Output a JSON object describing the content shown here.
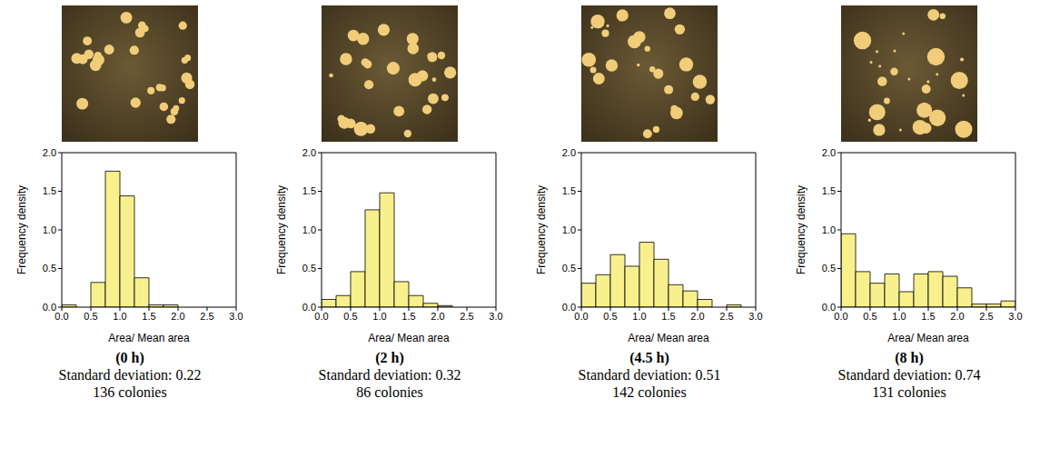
{
  "chart_data": [
    {
      "type": "histogram",
      "title": "(0 h)",
      "x_label": "Area/ Mean area",
      "y_label": "Frequency density",
      "bins": [
        0,
        0.25,
        0.5,
        0.75,
        1,
        1.25,
        1.5,
        1.75,
        2,
        2.25,
        2.5,
        2.75,
        3
      ],
      "values": [
        0.03,
        0,
        0.32,
        1.76,
        1.44,
        0.38,
        0.03,
        0.03,
        0,
        0,
        0,
        0
      ],
      "color": "#f7f08c",
      "xlim": [
        0,
        3
      ],
      "ylim": [
        0,
        2
      ],
      "xticks": [
        {
          "value": 0,
          "label": "0.0"
        },
        0.5,
        {
          "value": 1,
          "label": "1.0"
        },
        1.5,
        {
          "value": 2,
          "label": "2.0"
        },
        2.5,
        {
          "value": 3,
          "label": "3.0"
        }
      ],
      "yticks": [
        {
          "value": 0,
          "label": "0.0"
        },
        0.5,
        {
          "value": 1,
          "label": "1.0"
        },
        1.5,
        {
          "value": 2,
          "label": "2.0"
        }
      ],
      "grid": false,
      "annotations": [
        "Standard deviation: 0.22",
        "136 colonies"
      ]
    },
    {
      "type": "histogram",
      "title": "(2 h)",
      "x_label": "Area/ Mean area",
      "y_label": "Frequency density",
      "bins": [
        0,
        0.25,
        0.5,
        0.75,
        1,
        1.25,
        1.5,
        1.75,
        2,
        2.25,
        2.5,
        2.75,
        3
      ],
      "values": [
        0.1,
        0.15,
        0.46,
        1.26,
        1.48,
        0.33,
        0.15,
        0.05,
        0.02,
        0,
        0,
        0
      ],
      "color": "#f7f08c",
      "xlim": [
        0,
        3
      ],
      "ylim": [
        0,
        2
      ],
      "xticks": [
        {
          "value": 0,
          "label": "0.0"
        },
        0.5,
        {
          "value": 1,
          "label": "1.0"
        },
        1.5,
        {
          "value": 2,
          "label": "2.0"
        },
        2.5,
        {
          "value": 3,
          "label": "3.0"
        }
      ],
      "yticks": [
        {
          "value": 0,
          "label": "0.0"
        },
        0.5,
        {
          "value": 1,
          "label": "1.0"
        },
        1.5,
        {
          "value": 2,
          "label": "2.0"
        }
      ],
      "grid": false,
      "annotations": [
        "Standard deviation: 0.32",
        "86 colonies"
      ]
    },
    {
      "type": "histogram",
      "title": "(4.5 h)",
      "x_label": "Area/ Mean area",
      "y_label": "Frequency density",
      "bins": [
        0,
        0.25,
        0.5,
        0.75,
        1,
        1.25,
        1.5,
        1.75,
        2,
        2.25,
        2.5,
        2.75,
        3
      ],
      "values": [
        0.31,
        0.42,
        0.68,
        0.53,
        0.84,
        0.62,
        0.29,
        0.21,
        0.1,
        0,
        0.03,
        0
      ],
      "color": "#f7f08c",
      "xlim": [
        0,
        3
      ],
      "ylim": [
        0,
        2
      ],
      "xticks": [
        {
          "value": 0,
          "label": "0.0"
        },
        0.5,
        {
          "value": 1,
          "label": "1.0"
        },
        1.5,
        {
          "value": 2,
          "label": "2.0"
        },
        2.5,
        {
          "value": 3,
          "label": "3.0"
        }
      ],
      "yticks": [
        {
          "value": 0,
          "label": "0.0"
        },
        0.5,
        {
          "value": 1,
          "label": "1.0"
        },
        1.5,
        {
          "value": 2,
          "label": "2.0"
        }
      ],
      "grid": false,
      "annotations": [
        "Standard deviation: 0.51",
        "142 colonies"
      ]
    },
    {
      "type": "histogram",
      "title": "(8 h)",
      "x_label": "Area/ Mean area",
      "y_label": "Frequency density",
      "bins": [
        0,
        0.25,
        0.5,
        0.75,
        1,
        1.25,
        1.5,
        1.75,
        2,
        2.25,
        2.5,
        2.75,
        3
      ],
      "values": [
        0.95,
        0.46,
        0.31,
        0.43,
        0.2,
        0.43,
        0.46,
        0.4,
        0.25,
        0.04,
        0.04,
        0.08
      ],
      "color": "#f7f08c",
      "xlim": [
        0,
        3
      ],
      "ylim": [
        0,
        2
      ],
      "xticks": [
        {
          "value": 0,
          "label": "0.0"
        },
        0.5,
        {
          "value": 1,
          "label": "1.0"
        },
        1.5,
        {
          "value": 2,
          "label": "2.0"
        },
        2.5,
        {
          "value": 3,
          "label": "3.0"
        }
      ],
      "yticks": [
        {
          "value": 0,
          "label": "0.0"
        },
        0.5,
        {
          "value": 1,
          "label": "1.0"
        },
        1.5,
        {
          "value": 2,
          "label": "2.0"
        }
      ],
      "grid": false,
      "annotations": [
        "Standard deviation: 0.74",
        "131 colonies"
      ]
    }
  ]
}
